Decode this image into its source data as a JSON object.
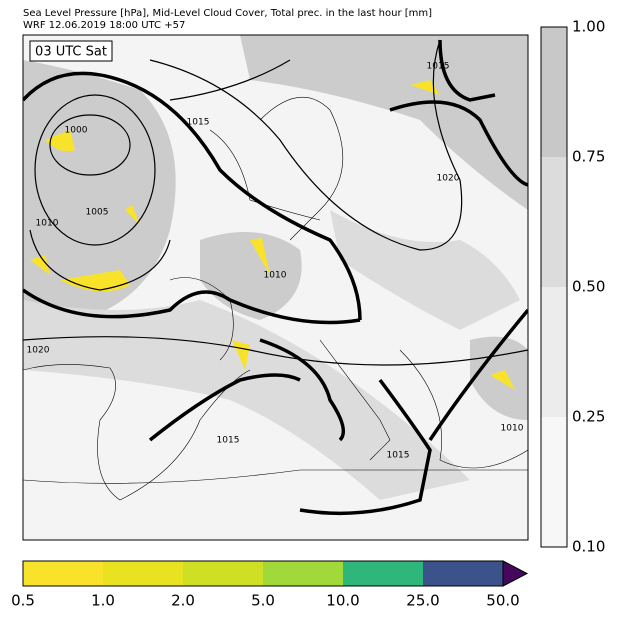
{
  "header": {
    "line1": "Sea Level Pressure [hPa], Mid-Level Cloud Cover, Total prec. in the last hour [mm]",
    "line2": "WRF 12.06.2019 18:00 UTC +57"
  },
  "time_label": "03 UTC Sat",
  "contour_labels": [
    "1000",
    "1005",
    "1010",
    "1015",
    "1020",
    "1015",
    "1010",
    "1020",
    "1015",
    "1015",
    "1010"
  ],
  "cloud_colorbar": {
    "ticks": [
      "1.00",
      "0.75",
      "0.50",
      "0.25",
      "0.10"
    ],
    "colors": [
      "#c8c8c8",
      "#dcdcdc",
      "#ececec",
      "#f7f7f7"
    ]
  },
  "precip_colorbar": {
    "ticks": [
      "0.5",
      "1.0",
      "2.0",
      "5.0",
      "10.0",
      "25.0",
      "50.0"
    ],
    "colors": [
      "#f8e32a",
      "#e8e221",
      "#cfdf23",
      "#a2d93a",
      "#2eb67b",
      "#3b528b",
      "#46085c"
    ]
  }
}
